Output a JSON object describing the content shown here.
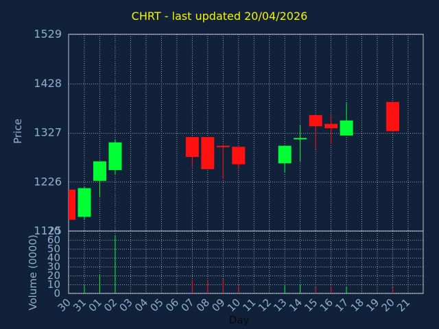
{
  "title": "CHRT - last updated 20/04/2026",
  "colors": {
    "background": "#11213a",
    "title": "#f5f500",
    "axis_text": "#8fb0d0",
    "up": "#00ff33",
    "down": "#ff1111",
    "grid": "#c0c8d0"
  },
  "chart_data": [
    {
      "type": "candlestick",
      "ylabel": "Price",
      "ylim": [
        1125,
        1529
      ],
      "yticks": [
        1125,
        1226,
        1327,
        1428,
        1529
      ],
      "grid": true,
      "categories": [
        "30",
        "31",
        "01",
        "02",
        "03",
        "04",
        "05",
        "06",
        "07",
        "08",
        "09",
        "10",
        "11",
        "12",
        "13",
        "14",
        "15",
        "16",
        "17",
        "18",
        "19",
        "20",
        "21"
      ],
      "candles": [
        {
          "day": "30",
          "open": 1210,
          "high": 1210,
          "low": 1148,
          "close": 1148
        },
        {
          "day": "31",
          "open": 1154,
          "high": 1215,
          "low": 1148,
          "close": 1213
        },
        {
          "day": "01",
          "open": 1228,
          "high": 1268,
          "low": 1196,
          "close": 1268
        },
        {
          "day": "02",
          "open": 1250,
          "high": 1313,
          "low": 1240,
          "close": 1307
        },
        {
          "day": "07",
          "open": 1318,
          "high": 1318,
          "low": 1256,
          "close": 1277
        },
        {
          "day": "08",
          "open": 1318,
          "high": 1318,
          "low": 1252,
          "close": 1252
        },
        {
          "day": "09",
          "open": 1300,
          "high": 1302,
          "low": 1232,
          "close": 1298
        },
        {
          "day": "10",
          "open": 1298,
          "high": 1298,
          "low": 1252,
          "close": 1262
        },
        {
          "day": "13",
          "open": 1264,
          "high": 1300,
          "low": 1245,
          "close": 1300
        },
        {
          "day": "14",
          "open": 1314,
          "high": 1342,
          "low": 1268,
          "close": 1316
        },
        {
          "day": "15",
          "open": 1363,
          "high": 1363,
          "low": 1292,
          "close": 1340
        },
        {
          "day": "16",
          "open": 1345,
          "high": 1362,
          "low": 1304,
          "close": 1336
        },
        {
          "day": "17",
          "open": 1321,
          "high": 1388,
          "low": 1321,
          "close": 1352
        },
        {
          "day": "20",
          "open": 1390,
          "high": 1390,
          "low": 1330,
          "close": 1330
        }
      ]
    },
    {
      "type": "bar",
      "ylabel": "Volume (0000)",
      "xlabel": "Day",
      "ylim": [
        0,
        70
      ],
      "yticks": [
        0,
        10,
        20,
        30,
        40,
        50,
        60,
        70
      ],
      "grid": true,
      "categories": [
        "30",
        "31",
        "01",
        "02",
        "03",
        "04",
        "05",
        "06",
        "07",
        "08",
        "09",
        "10",
        "11",
        "12",
        "13",
        "14",
        "15",
        "16",
        "17",
        "18",
        "19",
        "20",
        "21"
      ],
      "bars": [
        {
          "day": "31",
          "value": 9,
          "direction": "up"
        },
        {
          "day": "01",
          "value": 21,
          "direction": "up"
        },
        {
          "day": "02",
          "value": 65,
          "direction": "up"
        },
        {
          "day": "07",
          "value": 15,
          "direction": "down"
        },
        {
          "day": "08",
          "value": 14,
          "direction": "down"
        },
        {
          "day": "09",
          "value": 16,
          "direction": "down"
        },
        {
          "day": "10",
          "value": 9,
          "direction": "down"
        },
        {
          "day": "13",
          "value": 9,
          "direction": "up"
        },
        {
          "day": "14",
          "value": 10,
          "direction": "up"
        },
        {
          "day": "15",
          "value": 7,
          "direction": "down"
        },
        {
          "day": "16",
          "value": 8,
          "direction": "down"
        },
        {
          "day": "17",
          "value": 7,
          "direction": "up"
        },
        {
          "day": "20",
          "value": 7,
          "direction": "down"
        }
      ]
    }
  ]
}
